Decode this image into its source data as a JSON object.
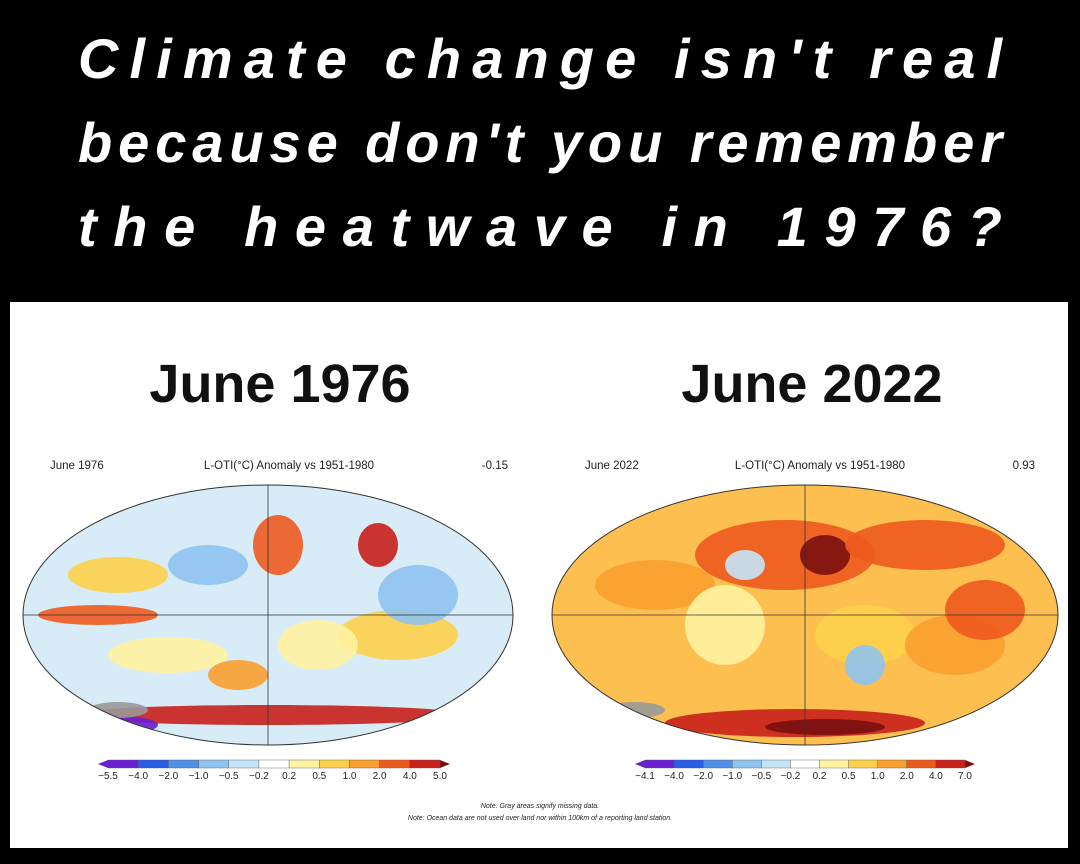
{
  "headline": {
    "lines": [
      "Climate change isn't real",
      "because don't you remember",
      "the heatwave in 1976?"
    ]
  },
  "panels": [
    {
      "title": "June 1976",
      "map_label": "June 1976",
      "map_title": "L-OTI(°C) Anomaly vs 1951-1980",
      "map_value": "-0.15",
      "scale_labels": [
        "−5.5",
        "−4.0",
        "−2.0",
        "−1.0",
        "−0.5",
        "−0.2",
        "0.2",
        "0.5",
        "1.0",
        "2.0",
        "4.0",
        "5.0"
      ]
    },
    {
      "title": "June 2022",
      "map_label": "June 2022",
      "map_title": "L-OTI(°C) Anomaly vs 1951-1980",
      "map_value": "0.93",
      "scale_labels": [
        "−4.1",
        "−4.0",
        "−2.0",
        "−1.0",
        "−0.5",
        "−0.2",
        "0.2",
        "0.5",
        "1.0",
        "2.0",
        "4.0",
        "7.0"
      ]
    }
  ],
  "notes": [
    "Note: Gray areas signify missing data.",
    "Note: Ocean data are not used over land nor within 100km of a reporting land station."
  ]
}
